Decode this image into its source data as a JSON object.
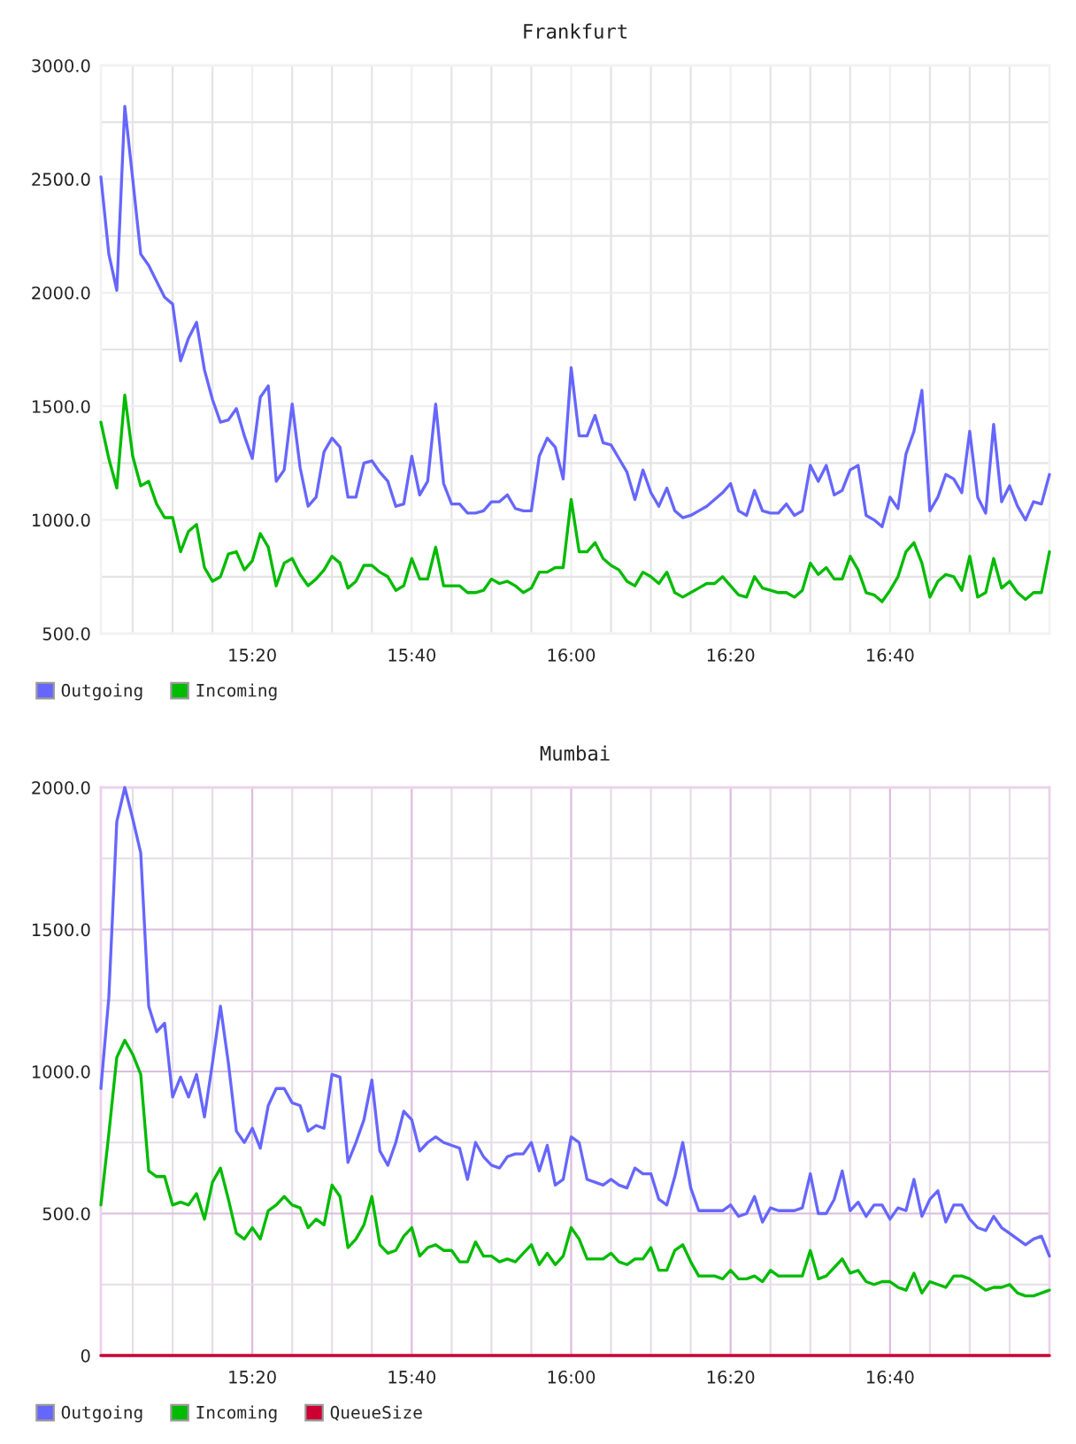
{
  "chart_data": [
    {
      "type": "line",
      "title": "Frankfurt",
      "grid": true,
      "legend": "bottom left",
      "line_style": "solid",
      "xlim": [
        15.0167,
        17
      ],
      "ylim": [
        500,
        3000
      ],
      "xticks": [
        {
          "value": 15.0833,
          "label": null
        },
        {
          "value": 15.1667,
          "label": null
        },
        {
          "value": 15.25,
          "label": null
        },
        {
          "value": 15.3333,
          "label": "15:20"
        },
        {
          "value": 15.4167,
          "label": null
        },
        {
          "value": 15.5,
          "label": null
        },
        {
          "value": 15.5833,
          "label": null
        },
        {
          "value": 15.6667,
          "label": "15:40"
        },
        {
          "value": 15.75,
          "label": null
        },
        {
          "value": 15.8333,
          "label": null
        },
        {
          "value": 15.9167,
          "label": null
        },
        {
          "value": 16,
          "label": "16:00"
        },
        {
          "value": 16.0833,
          "label": null
        },
        {
          "value": 16.1667,
          "label": null
        },
        {
          "value": 16.25,
          "label": null
        },
        {
          "value": 16.3333,
          "label": "16:20"
        },
        {
          "value": 16.4167,
          "label": null
        },
        {
          "value": 16.5,
          "label": null
        },
        {
          "value": 16.5833,
          "label": null
        },
        {
          "value": 16.6667,
          "label": "16:40"
        },
        {
          "value": 16.75,
          "label": null
        },
        {
          "value": 16.8333,
          "label": null
        },
        {
          "value": 16.9167,
          "label": null
        }
      ],
      "yticks": [
        {
          "value": 500,
          "label": "500.0"
        },
        {
          "value": 750,
          "label": null
        },
        {
          "value": 1000,
          "label": "1000.0"
        },
        {
          "value": 1250,
          "label": null
        },
        {
          "value": 1500,
          "label": "1500.0"
        },
        {
          "value": 1750,
          "label": null
        },
        {
          "value": 2000,
          "label": "2000.0"
        },
        {
          "value": 2250,
          "label": null
        },
        {
          "value": 2500,
          "label": "2500.0"
        },
        {
          "value": 2750,
          "label": null
        },
        {
          "value": 3000,
          "label": "3000.0"
        }
      ],
      "x": [
        15.0167,
        15.0333,
        15.05,
        15.0667,
        15.0833,
        15.1,
        15.1167,
        15.1333,
        15.15,
        15.1667,
        15.1833,
        15.2,
        15.2167,
        15.2333,
        15.25,
        15.2667,
        15.2833,
        15.3,
        15.3167,
        15.3333,
        15.35,
        15.3667,
        15.3833,
        15.4,
        15.4167,
        15.4333,
        15.45,
        15.4667,
        15.4833,
        15.5,
        15.5167,
        15.5333,
        15.55,
        15.5667,
        15.5833,
        15.6,
        15.6167,
        15.6333,
        15.65,
        15.6667,
        15.6833,
        15.7,
        15.7167,
        15.7333,
        15.75,
        15.7667,
        15.7833,
        15.8,
        15.8167,
        15.8333,
        15.85,
        15.8667,
        15.8833,
        15.9,
        15.9167,
        15.9333,
        15.95,
        15.9667,
        15.9833,
        16,
        16.0167,
        16.0333,
        16.05,
        16.0667,
        16.0833,
        16.1,
        16.1167,
        16.1333,
        16.15,
        16.1667,
        16.1833,
        16.2,
        16.2167,
        16.2333,
        16.25,
        16.2667,
        16.2833,
        16.3,
        16.3167,
        16.3333,
        16.35,
        16.3667,
        16.3833,
        16.4,
        16.4167,
        16.4333,
        16.45,
        16.4667,
        16.4833,
        16.5,
        16.5167,
        16.5333,
        16.55,
        16.5667,
        16.5833,
        16.6,
        16.6167,
        16.6333,
        16.65,
        16.6667,
        16.6833,
        16.7,
        16.7167,
        16.7333,
        16.75,
        16.7667,
        16.7833,
        16.8,
        16.8167,
        16.8333,
        16.85,
        16.8667,
        16.8833,
        16.9,
        16.9167,
        16.9333,
        16.95,
        16.9667,
        16.9833,
        17
      ],
      "series": [
        {
          "name": "Outgoing",
          "color": "#6666ff",
          "values": [
            2510,
            2170,
            2010,
            2820,
            2500,
            2170,
            2120,
            2050,
            1980,
            1950,
            1700,
            1800,
            1870,
            1660,
            1530,
            1430,
            1440,
            1490,
            1370,
            1270,
            1540,
            1590,
            1170,
            1220,
            1510,
            1230,
            1060,
            1100,
            1300,
            1360,
            1320,
            1100,
            1100,
            1250,
            1260,
            1210,
            1170,
            1060,
            1070,
            1280,
            1110,
            1170,
            1510,
            1160,
            1070,
            1070,
            1030,
            1030,
            1040,
            1080,
            1080,
            1110,
            1050,
            1040,
            1040,
            1280,
            1360,
            1320,
            1180,
            1670,
            1370,
            1370,
            1460,
            1340,
            1330,
            1270,
            1210,
            1090,
            1220,
            1120,
            1060,
            1140,
            1040,
            1010,
            1020,
            1040,
            1060,
            1090,
            1120,
            1160,
            1040,
            1020,
            1130,
            1040,
            1030,
            1030,
            1070,
            1020,
            1040,
            1240,
            1170,
            1240,
            1110,
            1130,
            1220,
            1240,
            1020,
            1000,
            970,
            1100,
            1050,
            1290,
            1390,
            1570,
            1040,
            1100,
            1200,
            1180,
            1120,
            1390,
            1100,
            1030,
            1420,
            1080,
            1150,
            1060,
            1000,
            1080,
            1070,
            1200
          ]
        },
        {
          "name": "Incoming",
          "color": "#00bb00",
          "values": [
            1430,
            1270,
            1140,
            1550,
            1280,
            1150,
            1170,
            1070,
            1010,
            1010,
            860,
            950,
            980,
            790,
            730,
            750,
            850,
            860,
            780,
            820,
            940,
            880,
            710,
            810,
            830,
            760,
            710,
            740,
            780,
            840,
            810,
            700,
            730,
            800,
            800,
            770,
            750,
            690,
            710,
            830,
            740,
            740,
            880,
            710,
            710,
            710,
            680,
            680,
            690,
            740,
            720,
            730,
            710,
            680,
            700,
            770,
            770,
            790,
            790,
            1090,
            860,
            860,
            900,
            830,
            800,
            780,
            730,
            710,
            770,
            750,
            720,
            770,
            680,
            660,
            680,
            700,
            720,
            720,
            750,
            710,
            670,
            660,
            750,
            700,
            690,
            680,
            680,
            660,
            690,
            810,
            760,
            790,
            740,
            740,
            840,
            780,
            680,
            670,
            640,
            690,
            750,
            860,
            900,
            810,
            660,
            730,
            760,
            750,
            690,
            840,
            660,
            680,
            830,
            700,
            730,
            680,
            650,
            680,
            680,
            860
          ]
        }
      ]
    },
    {
      "type": "line",
      "title": "Mumbai",
      "grid": true,
      "legend": "bottom left",
      "line_style": "solid",
      "xlim": [
        15.0167,
        17
      ],
      "ylim": [
        0,
        2000
      ],
      "xticks": [
        {
          "value": 15.0833,
          "label": null
        },
        {
          "value": 15.1667,
          "label": null
        },
        {
          "value": 15.25,
          "label": null
        },
        {
          "value": 15.3333,
          "label": "15:20"
        },
        {
          "value": 15.4167,
          "label": null
        },
        {
          "value": 15.5,
          "label": null
        },
        {
          "value": 15.5833,
          "label": null
        },
        {
          "value": 15.6667,
          "label": "15:40"
        },
        {
          "value": 15.75,
          "label": null
        },
        {
          "value": 15.8333,
          "label": null
        },
        {
          "value": 15.9167,
          "label": null
        },
        {
          "value": 16,
          "label": "16:00"
        },
        {
          "value": 16.0833,
          "label": null
        },
        {
          "value": 16.1667,
          "label": null
        },
        {
          "value": 16.25,
          "label": null
        },
        {
          "value": 16.3333,
          "label": "16:20"
        },
        {
          "value": 16.4167,
          "label": null
        },
        {
          "value": 16.5,
          "label": null
        },
        {
          "value": 16.5833,
          "label": null
        },
        {
          "value": 16.6667,
          "label": "16:40"
        },
        {
          "value": 16.75,
          "label": null
        },
        {
          "value": 16.8333,
          "label": null
        },
        {
          "value": 16.9167,
          "label": null
        }
      ],
      "yticks": [
        0,
        {
          "value": 250,
          "label": null
        },
        {
          "value": 500,
          "label": "500.0"
        },
        {
          "value": 750,
          "label": null
        },
        {
          "value": 1000,
          "label": "1000.0"
        },
        {
          "value": 1250,
          "label": null
        },
        {
          "value": 1500,
          "label": "1500.0"
        },
        {
          "value": 1750,
          "label": null
        },
        {
          "value": 2000,
          "label": "2000.0"
        }
      ],
      "x": [
        15.0167,
        15.0333,
        15.05,
        15.0667,
        15.0833,
        15.1,
        15.1167,
        15.1333,
        15.15,
        15.1667,
        15.1833,
        15.2,
        15.2167,
        15.2333,
        15.25,
        15.2667,
        15.2833,
        15.3,
        15.3167,
        15.3333,
        15.35,
        15.3667,
        15.3833,
        15.4,
        15.4167,
        15.4333,
        15.45,
        15.4667,
        15.4833,
        15.5,
        15.5167,
        15.5333,
        15.55,
        15.5667,
        15.5833,
        15.6,
        15.6167,
        15.6333,
        15.65,
        15.6667,
        15.6833,
        15.7,
        15.7167,
        15.7333,
        15.75,
        15.7667,
        15.7833,
        15.8,
        15.8167,
        15.8333,
        15.85,
        15.8667,
        15.8833,
        15.9,
        15.9167,
        15.9333,
        15.95,
        15.9667,
        15.9833,
        16,
        16.0167,
        16.0333,
        16.05,
        16.0667,
        16.0833,
        16.1,
        16.1167,
        16.1333,
        16.15,
        16.1667,
        16.1833,
        16.2,
        16.2167,
        16.2333,
        16.25,
        16.2667,
        16.2833,
        16.3,
        16.3167,
        16.3333,
        16.35,
        16.3667,
        16.3833,
        16.4,
        16.4167,
        16.4333,
        16.45,
        16.4667,
        16.4833,
        16.5,
        16.5167,
        16.5333,
        16.55,
        16.5667,
        16.5833,
        16.6,
        16.6167,
        16.6333,
        16.65,
        16.6667,
        16.6833,
        16.7,
        16.7167,
        16.7333,
        16.75,
        16.7667,
        16.7833,
        16.8,
        16.8167,
        16.8333,
        16.85,
        16.8667,
        16.8833,
        16.9,
        16.9167,
        16.9333,
        16.95,
        16.9667,
        16.9833,
        17
      ],
      "series": [
        {
          "name": "Outgoing",
          "color": "#6666ff",
          "values": [
            940,
            1260,
            1880,
            2000,
            1890,
            1770,
            1230,
            1140,
            1170,
            910,
            980,
            910,
            990,
            840,
            1030,
            1230,
            1030,
            790,
            750,
            800,
            730,
            880,
            940,
            940,
            890,
            880,
            790,
            810,
            800,
            990,
            980,
            680,
            750,
            830,
            970,
            720,
            670,
            750,
            860,
            830,
            720,
            750,
            770,
            750,
            740,
            730,
            620,
            750,
            700,
            670,
            660,
            700,
            710,
            710,
            750,
            650,
            740,
            600,
            620,
            770,
            750,
            620,
            610,
            600,
            620,
            600,
            590,
            660,
            640,
            640,
            550,
            530,
            630,
            750,
            590,
            510,
            510,
            510,
            510,
            530,
            490,
            500,
            560,
            470,
            520,
            510,
            510,
            510,
            520,
            640,
            500,
            500,
            550,
            650,
            510,
            540,
            490,
            530,
            530,
            480,
            520,
            510,
            620,
            490,
            550,
            580,
            470,
            530,
            530,
            480,
            450,
            440,
            490,
            450,
            430,
            410,
            390,
            410,
            420,
            350
          ]
        },
        {
          "name": "Incoming",
          "color": "#00bb00",
          "values": [
            530,
            780,
            1050,
            1110,
            1060,
            990,
            650,
            630,
            630,
            530,
            540,
            530,
            570,
            480,
            610,
            660,
            550,
            430,
            410,
            450,
            410,
            510,
            530,
            560,
            530,
            520,
            450,
            480,
            460,
            600,
            560,
            380,
            410,
            460,
            560,
            390,
            360,
            370,
            420,
            450,
            350,
            380,
            390,
            370,
            370,
            330,
            330,
            400,
            350,
            350,
            330,
            340,
            330,
            360,
            390,
            320,
            360,
            320,
            350,
            450,
            410,
            340,
            340,
            340,
            360,
            330,
            320,
            340,
            340,
            380,
            300,
            300,
            370,
            390,
            330,
            280,
            280,
            280,
            270,
            300,
            270,
            270,
            280,
            260,
            300,
            280,
            280,
            280,
            280,
            370,
            270,
            280,
            310,
            340,
            290,
            300,
            260,
            250,
            260,
            260,
            240,
            230,
            290,
            220,
            260,
            250,
            240,
            280,
            280,
            270,
            250,
            230,
            240,
            240,
            250,
            220,
            210,
            210,
            220,
            230
          ]
        },
        {
          "name": "QueueSize",
          "color": "#cc0033",
          "values": [
            0,
            0,
            0,
            0,
            0,
            0,
            0,
            0,
            0,
            0,
            0,
            0,
            0,
            0,
            0,
            0,
            0,
            0,
            0,
            0,
            0,
            0,
            0,
            0,
            0,
            0,
            0,
            0,
            0,
            0,
            0,
            0,
            0,
            0,
            0,
            0,
            0,
            0,
            0,
            0,
            0,
            0,
            0,
            0,
            0,
            0,
            0,
            0,
            0,
            0,
            0,
            0,
            0,
            0,
            0,
            0,
            0,
            0,
            0,
            0,
            0,
            0,
            0,
            0,
            0,
            0,
            0,
            0,
            0,
            0,
            0,
            0,
            0,
            0,
            0,
            0,
            0,
            0,
            0,
            0,
            0,
            0,
            0,
            0,
            0,
            0,
            0,
            0,
            0,
            0,
            0,
            0,
            0,
            0,
            0,
            0,
            0,
            0,
            0,
            0,
            0,
            0,
            0,
            0,
            0,
            0,
            0,
            0,
            0,
            0,
            0,
            0,
            0,
            0,
            0,
            0,
            0,
            0,
            0,
            0
          ]
        }
      ]
    }
  ]
}
